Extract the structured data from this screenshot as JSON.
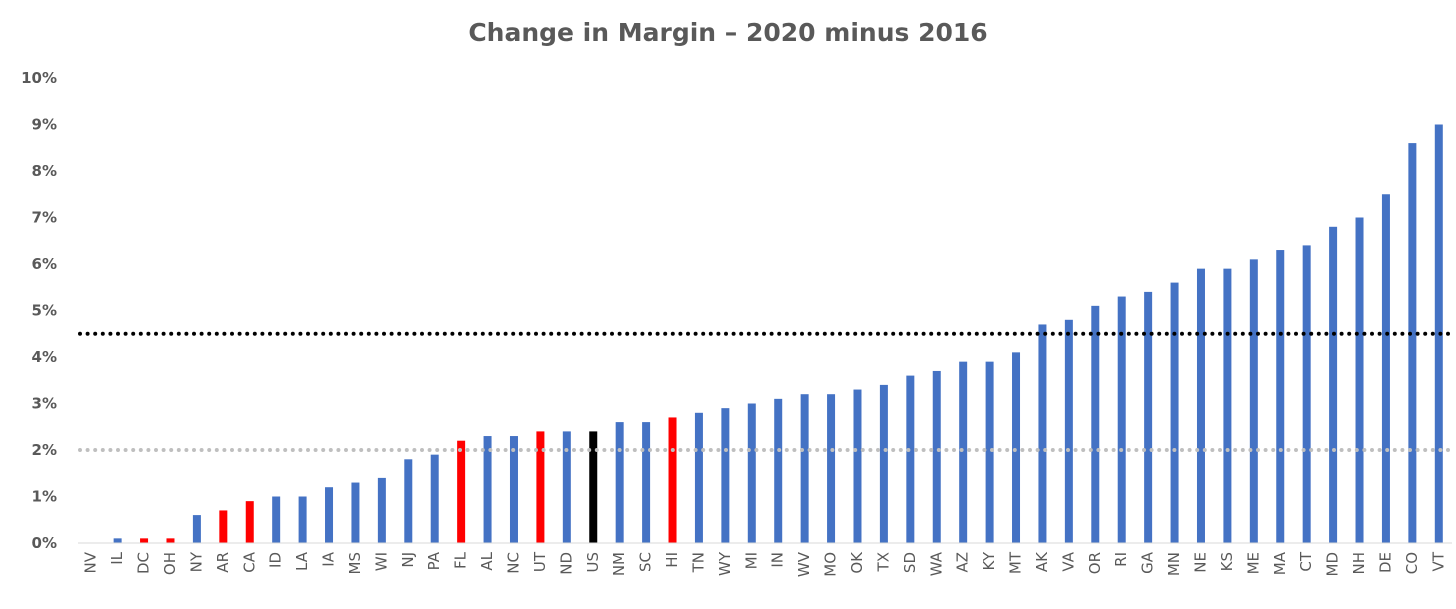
{
  "chart_data": {
    "type": "bar",
    "title": "Change in Margin – 2020 minus 2016",
    "xlabel": "",
    "ylabel": "",
    "ylim": [
      0,
      10
    ],
    "yticks": [
      0,
      1,
      2,
      3,
      4,
      5,
      6,
      7,
      8,
      9,
      10
    ],
    "ytick_labels": [
      "0%",
      "1%",
      "2%",
      "3%",
      "4%",
      "5%",
      "6%",
      "7%",
      "8%",
      "9%",
      "10%"
    ],
    "categories": [
      "NV",
      "IL",
      "DC",
      "OH",
      "NY",
      "AR",
      "CA",
      "ID",
      "LA",
      "IA",
      "MS",
      "WI",
      "NJ",
      "PA",
      "FL",
      "AL",
      "NC",
      "UT",
      "ND",
      "US",
      "NM",
      "SC",
      "HI",
      "TN",
      "WY",
      "MI",
      "IN",
      "WV",
      "MO",
      "OK",
      "TX",
      "SD",
      "WA",
      "AZ",
      "KY",
      "MT",
      "AK",
      "VA",
      "OR",
      "RI",
      "GA",
      "MN",
      "NE",
      "KS",
      "ME",
      "MA",
      "CT",
      "MD",
      "NH",
      "DE",
      "CO",
      "VT"
    ],
    "values": [
      0,
      0.1,
      0.1,
      0.1,
      0.6,
      0.7,
      0.9,
      1.0,
      1.0,
      1.2,
      1.3,
      1.4,
      1.8,
      1.9,
      2.2,
      2.3,
      2.3,
      2.4,
      2.4,
      2.4,
      2.6,
      2.6,
      2.7,
      2.8,
      2.9,
      3.0,
      3.1,
      3.2,
      3.2,
      3.3,
      3.4,
      3.6,
      3.7,
      3.9,
      3.9,
      4.1,
      4.7,
      4.8,
      5.1,
      5.3,
      5.4,
      5.6,
      5.9,
      5.9,
      6.1,
      6.3,
      6.4,
      6.8,
      7.0,
      7.5,
      8.6,
      9.0
    ],
    "bar_colors": [
      "#4472C4",
      "#4472C4",
      "#FF0000",
      "#FF0000",
      "#4472C4",
      "#FF0000",
      "#FF0000",
      "#4472C4",
      "#4472C4",
      "#4472C4",
      "#4472C4",
      "#4472C4",
      "#4472C4",
      "#4472C4",
      "#FF0000",
      "#4472C4",
      "#4472C4",
      "#FF0000",
      "#4472C4",
      "#000000",
      "#4472C4",
      "#4472C4",
      "#FF0000",
      "#4472C4",
      "#4472C4",
      "#4472C4",
      "#4472C4",
      "#4472C4",
      "#4472C4",
      "#4472C4",
      "#4472C4",
      "#4472C4",
      "#4472C4",
      "#4472C4",
      "#4472C4",
      "#4472C4",
      "#4472C4",
      "#4472C4",
      "#4472C4",
      "#4472C4",
      "#4472C4",
      "#4472C4",
      "#4472C4",
      "#4472C4",
      "#4472C4",
      "#4472C4",
      "#4472C4",
      "#4472C4",
      "#4472C4",
      "#4472C4",
      "#4472C4",
      "#4472C4"
    ],
    "reference_lines": [
      {
        "value": 4.5,
        "color": "#000000",
        "style": "dotted"
      },
      {
        "value": 2.0,
        "color": "#BFBFBF",
        "style": "dotted"
      }
    ],
    "grid": false,
    "legend": "none"
  }
}
